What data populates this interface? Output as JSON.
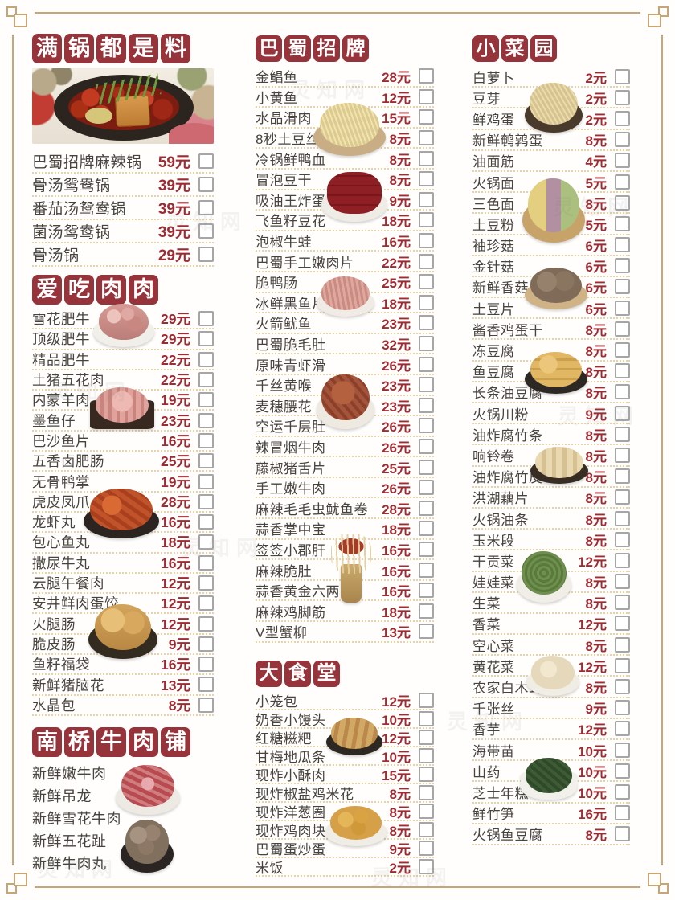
{
  "watermark": "灵知网",
  "colors": {
    "stamp_red": "#97333a",
    "price_red": "#9e2a32",
    "frame_gold": "#c9a573",
    "text": "#47433e"
  },
  "sections": [
    {
      "id": "hotpots",
      "title": "满锅都是料",
      "hero_image": "hotpot-photo",
      "items": [
        {
          "name": "巴蜀招牌麻辣锅",
          "price": "59元"
        },
        {
          "name": "骨汤鸳鸯锅",
          "price": "39元"
        },
        {
          "name": "番茄汤鸳鸯锅",
          "price": "39元"
        },
        {
          "name": "菌汤鸳鸯锅",
          "price": "39元"
        },
        {
          "name": "骨汤锅",
          "price": "29元"
        }
      ]
    },
    {
      "id": "meats",
      "title": "爱吃肉肉",
      "items": [
        {
          "name": "雪花肥牛",
          "price": "29元"
        },
        {
          "name": "顶级肥牛",
          "price": "29元"
        },
        {
          "name": "精品肥牛",
          "price": "22元"
        },
        {
          "name": "土猪五花肉",
          "price": "22元"
        },
        {
          "name": "内蒙羊肉",
          "price": "19元"
        },
        {
          "name": "墨鱼仔",
          "price": "23元"
        },
        {
          "name": "巴沙鱼片",
          "price": "16元"
        },
        {
          "name": "五香卤肥肠",
          "price": "25元"
        },
        {
          "name": "无骨鸭掌",
          "price": "19元"
        },
        {
          "name": "虎皮凤爪",
          "price": "28元"
        },
        {
          "name": "龙虾丸",
          "price": "16元"
        },
        {
          "name": "包心鱼丸",
          "price": "18元"
        },
        {
          "name": "撒尿牛丸",
          "price": "16元"
        },
        {
          "name": "云腿午餐肉",
          "price": "12元"
        },
        {
          "name": "安井鲜肉蛋饺",
          "price": "12元"
        },
        {
          "name": "火腿肠",
          "price": "12元"
        },
        {
          "name": "脆皮肠",
          "price": "9元"
        },
        {
          "name": "鱼籽福袋",
          "price": "16元"
        },
        {
          "name": "新鲜猪脑花",
          "price": "13元"
        },
        {
          "name": "水晶包",
          "price": "8元"
        }
      ]
    },
    {
      "id": "beefshop",
      "title": "南桥牛肉铺",
      "items": [
        {
          "name": "新鲜嫩牛肉"
        },
        {
          "name": "新鲜吊龙"
        },
        {
          "name": "新鲜雪花牛肉"
        },
        {
          "name": "新鲜五花趾"
        },
        {
          "name": "新鲜牛肉丸"
        }
      ]
    },
    {
      "id": "signature",
      "title": "巴蜀招牌",
      "items": [
        {
          "name": "金鲳鱼",
          "price": "28元"
        },
        {
          "name": "小黄鱼",
          "price": "12元"
        },
        {
          "name": "水晶滑肉",
          "price": "15元"
        },
        {
          "name": "8秒土豆丝",
          "price": "8元"
        },
        {
          "name": "冷锅鲜鸭血",
          "price": "8元"
        },
        {
          "name": "冒泡豆干",
          "price": "8元"
        },
        {
          "name": "吸油王炸蛋",
          "price": "9元"
        },
        {
          "name": "飞鱼籽豆花",
          "price": "18元"
        },
        {
          "name": "泡椒牛蛙",
          "price": "16元"
        },
        {
          "name": "巴蜀手工嫩肉片",
          "price": "22元"
        },
        {
          "name": "脆鸭肠",
          "price": "25元"
        },
        {
          "name": "冰鲜黑鱼片",
          "price": "18元"
        },
        {
          "name": "火箭鱿鱼",
          "price": "23元"
        },
        {
          "name": "巴蜀脆毛肚",
          "price": "32元"
        },
        {
          "name": "原味青虾滑",
          "price": "26元"
        },
        {
          "name": "千丝黄喉",
          "price": "23元"
        },
        {
          "name": "麦穗腰花",
          "price": "23元"
        },
        {
          "name": "空运千层肚",
          "price": "26元"
        },
        {
          "name": "辣冒烟牛肉",
          "price": "26元"
        },
        {
          "name": "藤椒猪舌片",
          "price": "25元"
        },
        {
          "name": "手工嫩牛肉",
          "price": "26元"
        },
        {
          "name": "麻辣毛毛虫鱿鱼卷",
          "price": "28元"
        },
        {
          "name": "蒜香掌中宝",
          "price": "18元"
        },
        {
          "name": "签签小郡肝",
          "price": "16元"
        },
        {
          "name": "麻辣脆肚",
          "price": "16元"
        },
        {
          "name": "蒜香黄金六两",
          "price": "16元"
        },
        {
          "name": "麻辣鸡脚筋",
          "price": "18元"
        },
        {
          "name": "V型蟹柳",
          "price": "13元"
        }
      ]
    },
    {
      "id": "canteen",
      "title": "大食堂",
      "items": [
        {
          "name": "小笼包",
          "price": "12元"
        },
        {
          "name": "奶香小馒头",
          "price": "10元"
        },
        {
          "name": "红糖糍粑",
          "price": "12元"
        },
        {
          "name": "甘梅地瓜条",
          "price": "10元"
        },
        {
          "name": "现炸小酥肉",
          "price": "15元"
        },
        {
          "name": "现炸椒盐鸡米花",
          "price": "8元"
        },
        {
          "name": "现炸洋葱圈",
          "price": "8元"
        },
        {
          "name": "现炸鸡肉块",
          "price": "8元"
        },
        {
          "name": "巴蜀蛋炒蛋",
          "price": "9元"
        },
        {
          "name": "米饭",
          "price": "2元"
        }
      ]
    },
    {
      "id": "garden",
      "title": "小菜园",
      "items": [
        {
          "name": "白萝卜",
          "price": "2元"
        },
        {
          "name": "豆芽",
          "price": "2元"
        },
        {
          "name": "鲜鸡蛋",
          "price": "2元"
        },
        {
          "name": "新鲜鹌鹑蛋",
          "price": "8元"
        },
        {
          "name": "油面筋",
          "price": "4元"
        },
        {
          "name": "火锅面",
          "price": "5元"
        },
        {
          "name": "三色面",
          "price": "8元"
        },
        {
          "name": "土豆粉",
          "price": "5元"
        },
        {
          "name": "袖珍菇",
          "price": "6元"
        },
        {
          "name": "金针菇",
          "price": "6元"
        },
        {
          "name": "新鲜香菇",
          "price": "6元"
        },
        {
          "name": "土豆片",
          "price": "6元"
        },
        {
          "name": "酱香鸡蛋干",
          "price": "8元"
        },
        {
          "name": "冻豆腐",
          "price": "8元"
        },
        {
          "name": "鱼豆腐",
          "price": "8元"
        },
        {
          "name": "长条油豆腐",
          "price": "8元"
        },
        {
          "name": "火锅川粉",
          "price": "9元"
        },
        {
          "name": "油炸腐竹条",
          "price": "8元"
        },
        {
          "name": "响铃卷",
          "price": "8元"
        },
        {
          "name": "油炸腐竹皮",
          "price": "8元"
        },
        {
          "name": "洪湖藕片",
          "price": "8元"
        },
        {
          "name": "火锅油条",
          "price": "8元"
        },
        {
          "name": "玉米段",
          "price": "8元"
        },
        {
          "name": "干贡菜",
          "price": "12元"
        },
        {
          "name": "娃娃菜",
          "price": "8元"
        },
        {
          "name": "生菜",
          "price": "8元"
        },
        {
          "name": "香菜",
          "price": "12元"
        },
        {
          "name": "空心菜",
          "price": "8元"
        },
        {
          "name": "黄花菜",
          "price": "12元"
        },
        {
          "name": "农家白木耳",
          "price": "8元"
        },
        {
          "name": "千张丝",
          "price": "9元"
        },
        {
          "name": "香芋",
          "price": "12元"
        },
        {
          "name": "海带苗",
          "price": "10元"
        },
        {
          "name": "山药",
          "price": "10元"
        },
        {
          "name": "芝士年糕",
          "price": "10元"
        },
        {
          "name": "鲜竹笋",
          "price": "16元"
        },
        {
          "name": "火锅鱼豆腐",
          "price": "8元"
        }
      ]
    }
  ],
  "images": [
    "beef-rolls",
    "lamb-tray",
    "chicken-feet",
    "fried-pouches",
    "beef-plate",
    "beef-balls",
    "potato-shreds",
    "duck-blood",
    "duck-intestine",
    "yellow-throat",
    "skewer-cup",
    "ciba-plate",
    "fried-chicken",
    "bean-sprouts",
    "tri-noodles",
    "mushrooms",
    "tofu-cubes",
    "tofu-rolls",
    "dried-veg",
    "white-fungus",
    "seaweed-bowl"
  ]
}
